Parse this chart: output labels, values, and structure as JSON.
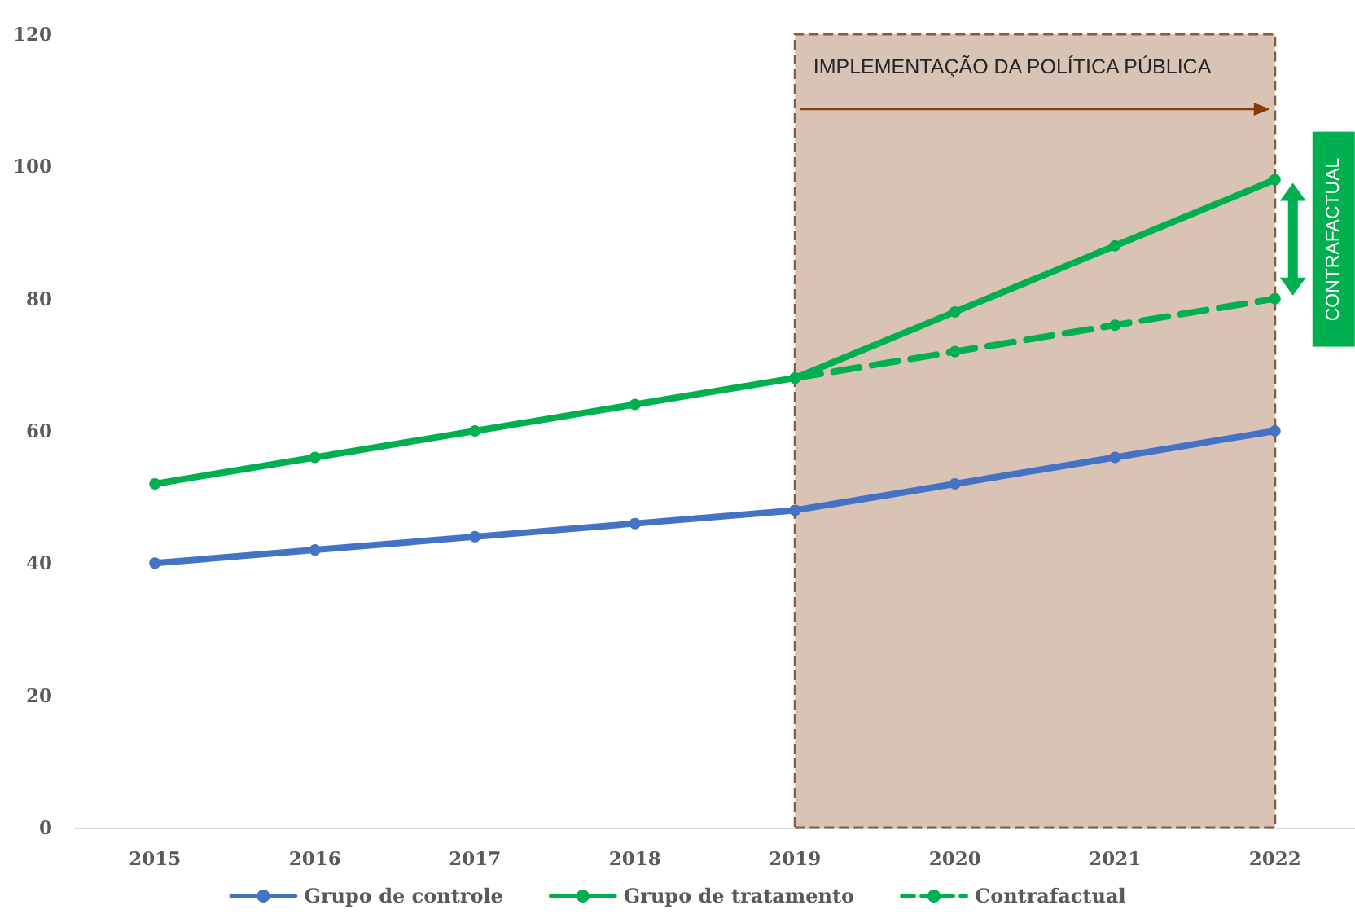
{
  "chart_data": {
    "type": "line",
    "categories": [
      "2015",
      "2016",
      "2017",
      "2018",
      "2019",
      "2020",
      "2021",
      "2022"
    ],
    "series": [
      {
        "name": "Grupo de controle",
        "color": "#4472c4",
        "values": [
          40,
          42,
          44,
          46,
          48,
          52,
          56,
          60
        ]
      },
      {
        "name": "Grupo de tratamento",
        "color": "#00b050",
        "values": [
          52,
          56,
          60,
          64,
          68,
          78,
          88,
          98
        ]
      },
      {
        "name": "Contrafactual",
        "color": "#00b050",
        "line_style": "dashed",
        "values": [
          null,
          null,
          null,
          null,
          68,
          72,
          76,
          80
        ]
      }
    ],
    "ylim": [
      0,
      120
    ],
    "yticks": [
      0,
      20,
      40,
      60,
      80,
      100,
      120
    ],
    "grid": false,
    "legend": "bottom",
    "marker": "circle",
    "line_style": "solid",
    "bands": [
      {
        "axis": "x",
        "from": "2019",
        "to": "2022",
        "label": "IMPLEMENTAÇÃO DA POLÍTICA PÚBLICA",
        "color": "#d9c3b4"
      }
    ],
    "annotations": [
      {
        "text": "CONTRAFACTUAL",
        "x": "2022",
        "y": 89
      }
    ]
  }
}
